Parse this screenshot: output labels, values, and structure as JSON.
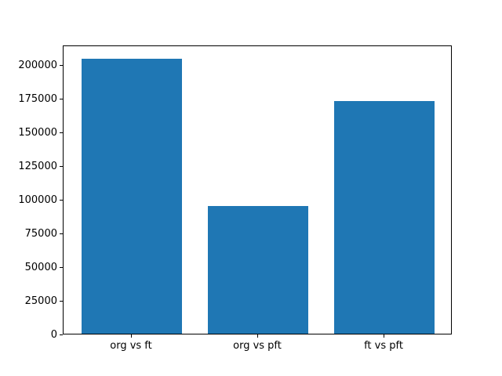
{
  "chart_data": {
    "type": "bar",
    "categories": [
      "org vs ft",
      "org vs pft",
      "ft vs pft"
    ],
    "values": [
      204000,
      95000,
      173000
    ],
    "title": "",
    "xlabel": "",
    "ylabel": "",
    "ylim": [
      0,
      214700
    ],
    "yticks": [
      0,
      25000,
      50000,
      75000,
      100000,
      125000,
      150000,
      175000,
      200000
    ],
    "bar_color": "#1f77b4",
    "axis_color": "#000000",
    "background_color": "#ffffff",
    "grid": false,
    "legend_position": "none"
  }
}
